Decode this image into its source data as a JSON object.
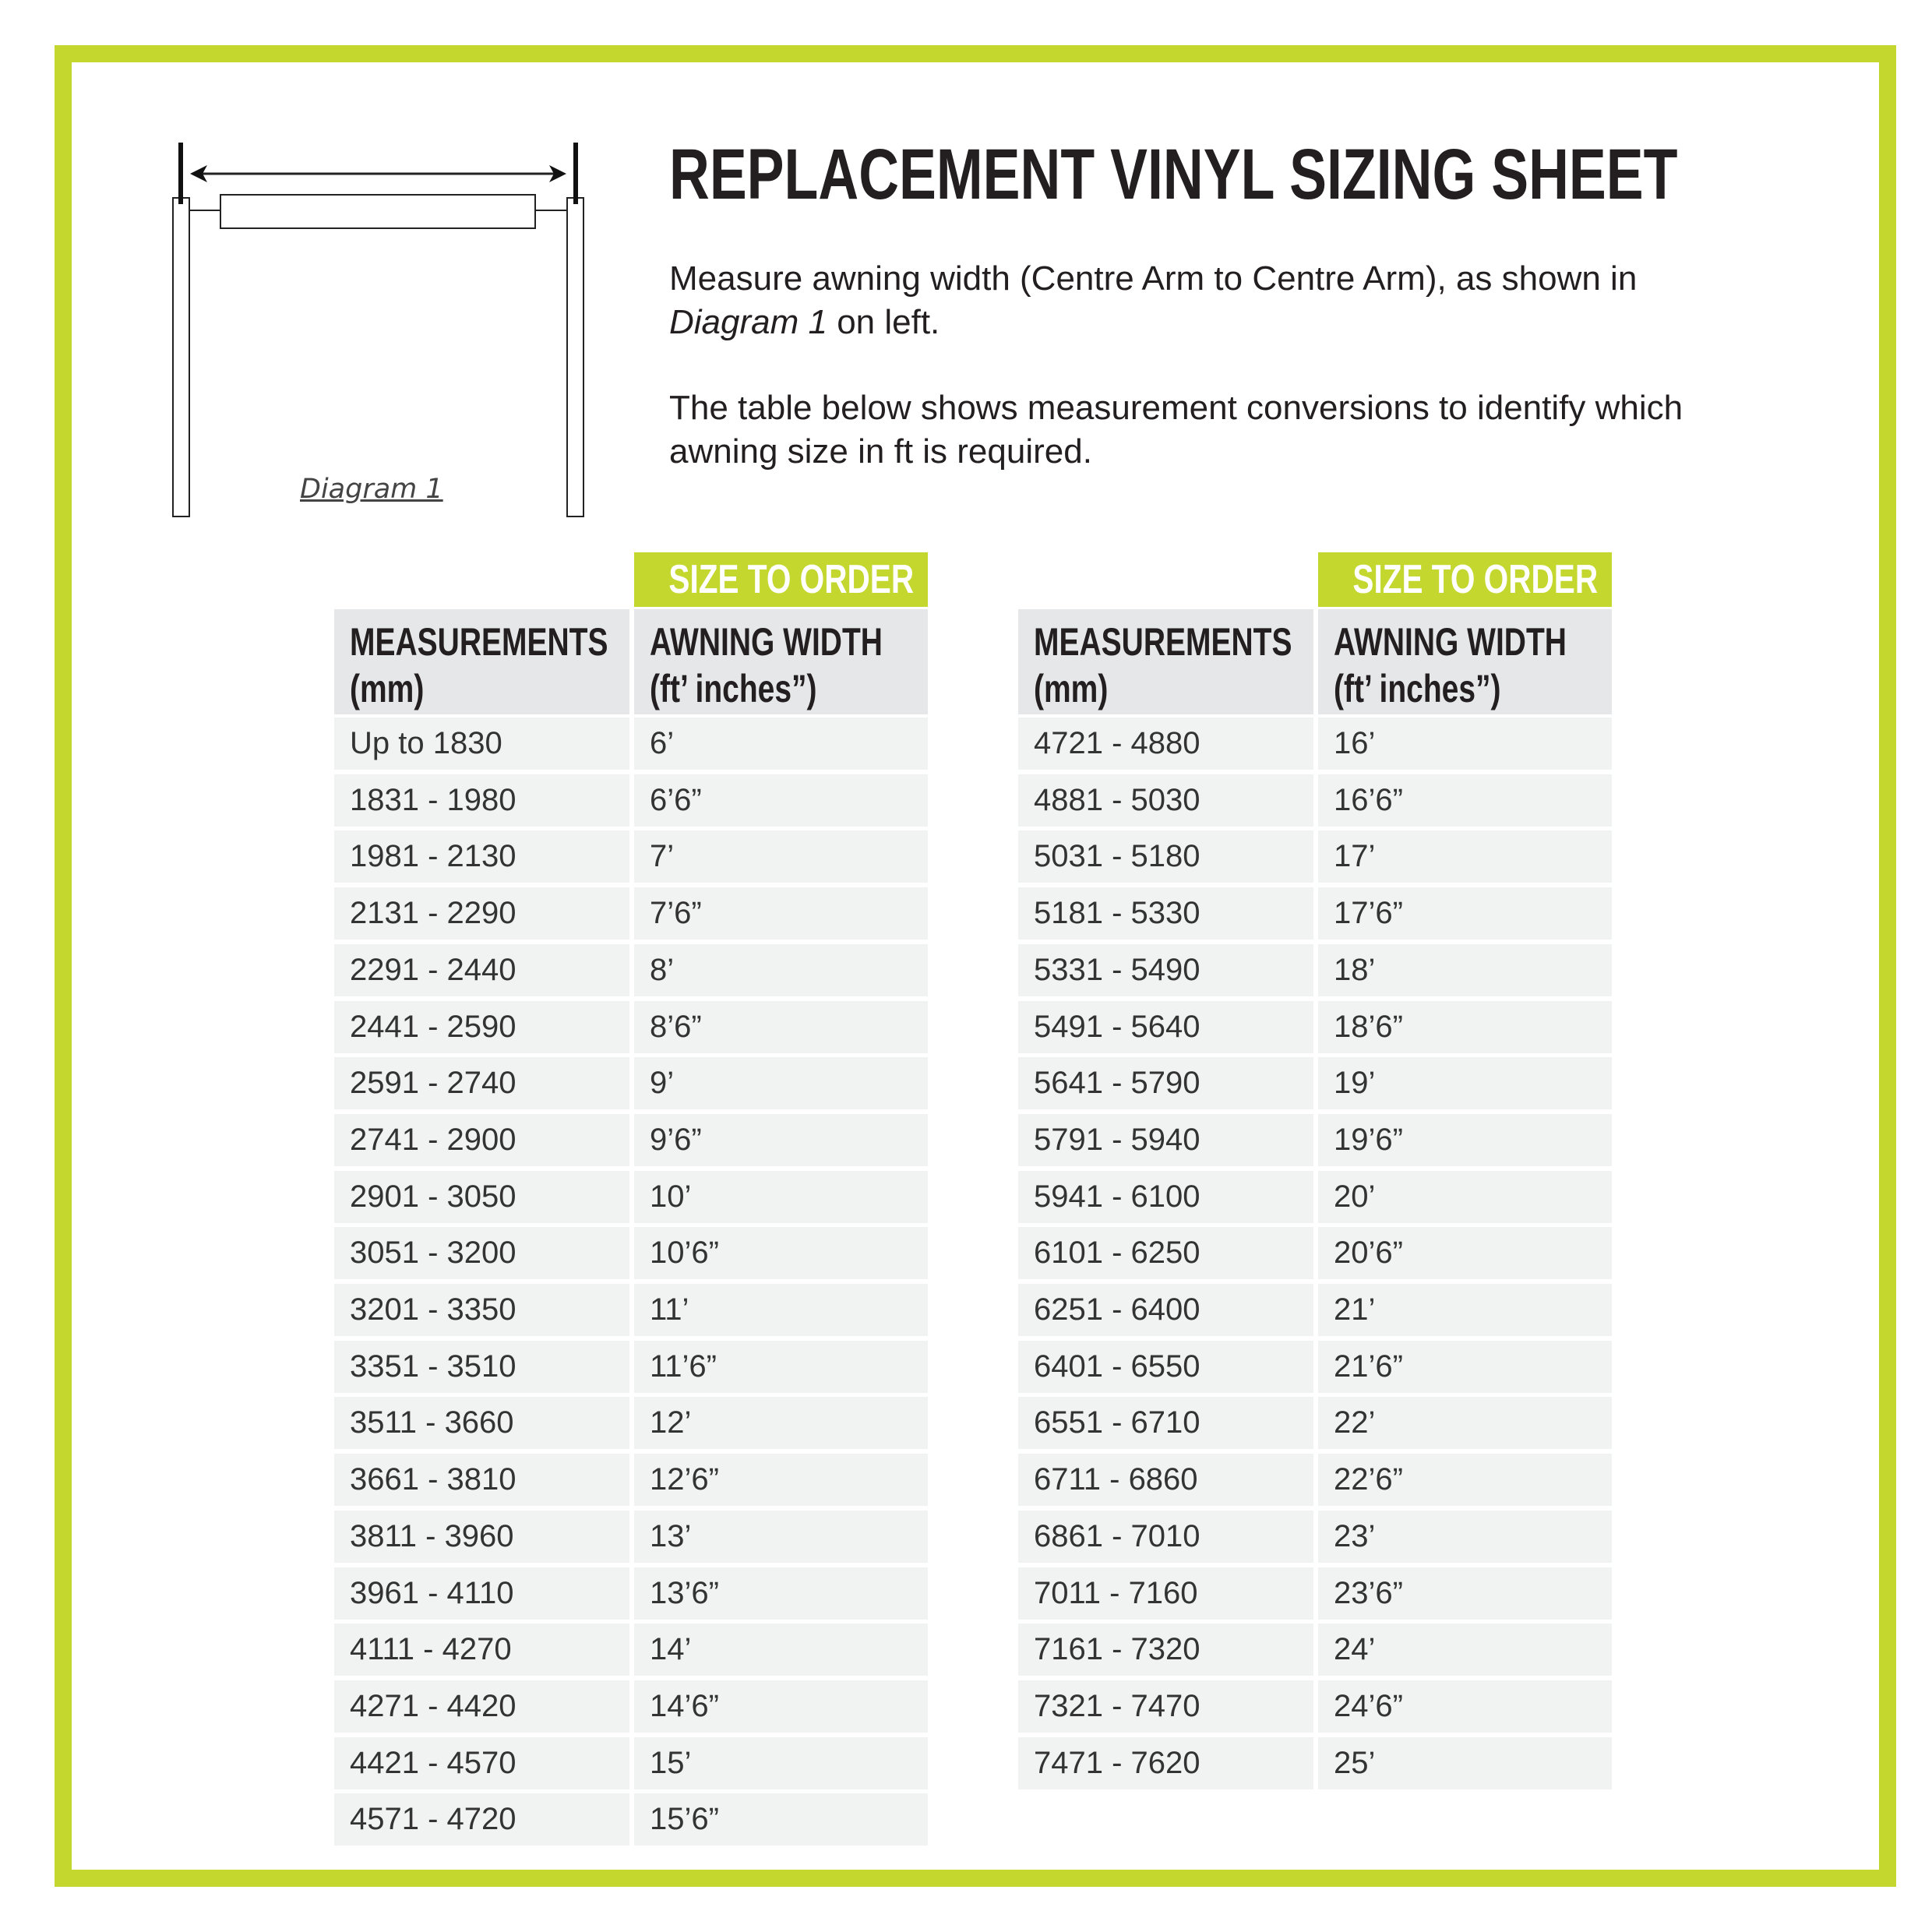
{
  "title": "REPLACEMENT VINYL SIZING SHEET",
  "intro": {
    "line1": "Measure awning width (Centre Arm to Centre Arm), as shown in",
    "line2_em": "Diagram 1",
    "line2_rest": " on left.",
    "para2_line1": "The table below shows measurement conversions to identify which",
    "para2_line2": "awning size in ft is required."
  },
  "diagram": {
    "label": "Diagram 1"
  },
  "colors": {
    "accent": "#c4d72f",
    "header_bg": "#e6e7e8",
    "row_bg": "#f1f2f2"
  },
  "table_headers": {
    "size_to_order": "SIZE TO ORDER",
    "measurements_l1": "MEASUREMENTS",
    "measurements_l2": "(mm)",
    "width_l1": "AWNING WIDTH",
    "width_l2": "(ft’ inches”)"
  },
  "tables": [
    {
      "rows": [
        [
          "Up to 1830",
          "6’"
        ],
        [
          "1831 - 1980",
          "6’6”"
        ],
        [
          "1981 - 2130",
          "7’"
        ],
        [
          "2131 - 2290",
          "7’6”"
        ],
        [
          "2291 - 2440",
          "8’"
        ],
        [
          "2441 - 2590",
          "8’6”"
        ],
        [
          "2591 - 2740",
          "9’"
        ],
        [
          "2741 - 2900",
          "9’6”"
        ],
        [
          "2901 - 3050",
          "10’"
        ],
        [
          "3051 - 3200",
          "10’6”"
        ],
        [
          "3201 - 3350",
          "11’"
        ],
        [
          "3351 - 3510",
          "11’6”"
        ],
        [
          "3511 - 3660",
          "12’"
        ],
        [
          "3661 - 3810",
          "12’6”"
        ],
        [
          "3811 - 3960",
          "13’"
        ],
        [
          "3961 - 4110",
          "13’6”"
        ],
        [
          "4111 - 4270",
          "14’"
        ],
        [
          "4271 - 4420",
          "14’6”"
        ],
        [
          "4421 - 4570",
          "15’"
        ],
        [
          "4571 - 4720",
          "15’6”"
        ]
      ]
    },
    {
      "rows": [
        [
          "4721 - 4880",
          "16’"
        ],
        [
          "4881 - 5030",
          "16’6”"
        ],
        [
          "5031 - 5180",
          "17’"
        ],
        [
          "5181 - 5330",
          "17’6”"
        ],
        [
          "5331 - 5490",
          "18’"
        ],
        [
          "5491 - 5640",
          "18’6”"
        ],
        [
          "5641 - 5790",
          "19’"
        ],
        [
          "5791 - 5940",
          "19’6”"
        ],
        [
          "5941 - 6100",
          "20’"
        ],
        [
          "6101 - 6250",
          "20’6”"
        ],
        [
          "6251 - 6400",
          "21’"
        ],
        [
          "6401 - 6550",
          "21’6”"
        ],
        [
          "6551 - 6710",
          "22’"
        ],
        [
          "6711 - 6860",
          "22’6”"
        ],
        [
          "6861 - 7010",
          "23’"
        ],
        [
          "7011 - 7160",
          "23’6”"
        ],
        [
          "7161 - 7320",
          "24’"
        ],
        [
          "7321 - 7470",
          "24’6”"
        ],
        [
          "7471 - 7620",
          "25’"
        ]
      ]
    }
  ]
}
